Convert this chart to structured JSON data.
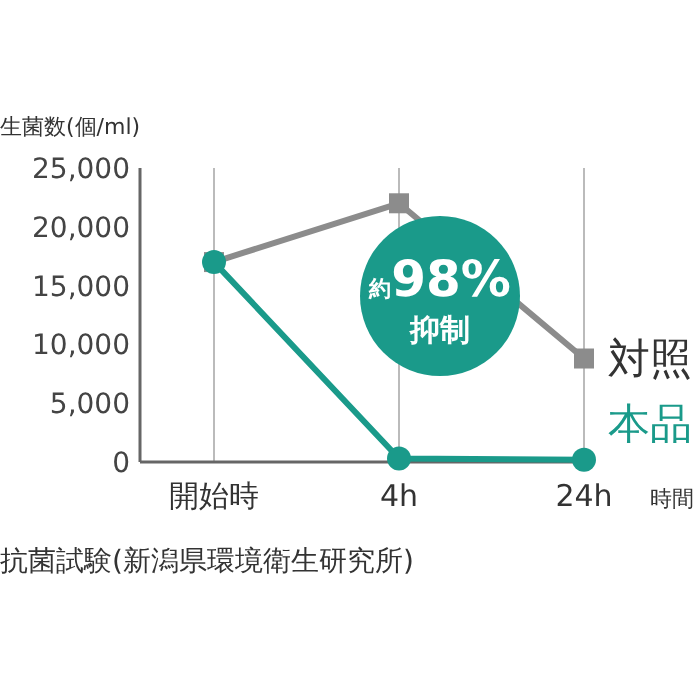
{
  "chart_data": {
    "type": "line",
    "ylabel": "生菌数(個/ml)",
    "xlabel": "時間",
    "categories": [
      "開始時",
      "4h",
      "24h"
    ],
    "series": [
      {
        "name": "対照",
        "color": "#8c8c8c",
        "marker": "square",
        "values": [
          17000,
          22000,
          8800
        ]
      },
      {
        "name": "本品",
        "color": "#1a9a8a",
        "marker": "circle",
        "values": [
          17000,
          300,
          200
        ]
      }
    ],
    "ylim": [
      0,
      25000
    ],
    "yticks": [
      {
        "value": 0,
        "label": "0"
      },
      {
        "value": 5000,
        "label": "5,000"
      },
      {
        "value": 10000,
        "label": "10,000"
      },
      {
        "value": 15000,
        "label": "15,000"
      },
      {
        "value": 20000,
        "label": "20,000"
      },
      {
        "value": 25000,
        "label": "25,000"
      }
    ],
    "grid": "x",
    "annotations": [
      "約98%抑制",
      "抗菌試験(新潟県環境衛生研究所)"
    ]
  }
}
